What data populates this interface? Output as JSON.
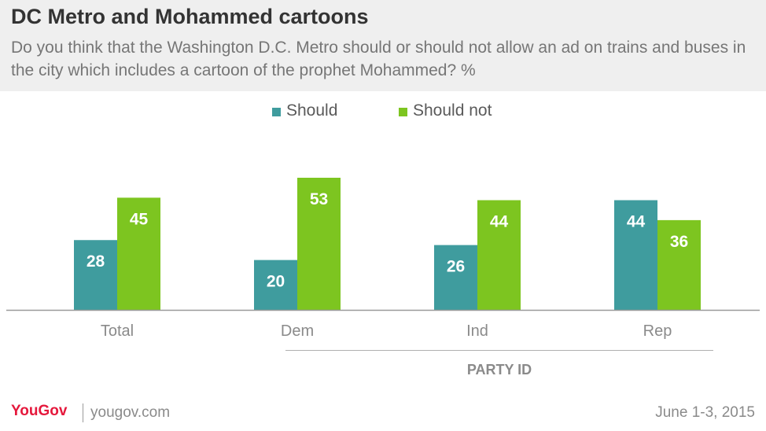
{
  "header": {
    "title": "DC Metro and Mohammed cartoons",
    "subtitle": "Do you think that the Washington D.C. Metro should or should not allow an ad on trains and buses in the city which includes a cartoon of the prophet Mohammed? %"
  },
  "footer": {
    "logo": "YouGov",
    "site": "yougov.com",
    "date": "June 1-3, 2015"
  },
  "colors": {
    "should": "#3f9c9e",
    "should_not": "#7dc520",
    "axis": "#9a9a9a",
    "tick_label": "#8a8a8a",
    "group_label": "#8a8a8a"
  },
  "chart_data": {
    "type": "bar",
    "categories": [
      "Total",
      "Dem",
      "Ind",
      "Rep"
    ],
    "series": [
      {
        "name": "Should",
        "values": [
          28,
          20,
          26,
          44
        ]
      },
      {
        "name": "Should not",
        "values": [
          45,
          53,
          44,
          36
        ]
      }
    ],
    "group_label": "PARTY ID",
    "group_categories": [
      "Dem",
      "Ind",
      "Rep"
    ],
    "ylim": [
      0,
      53
    ],
    "grid": false,
    "legend_position": "top-center",
    "data_labels": true
  }
}
